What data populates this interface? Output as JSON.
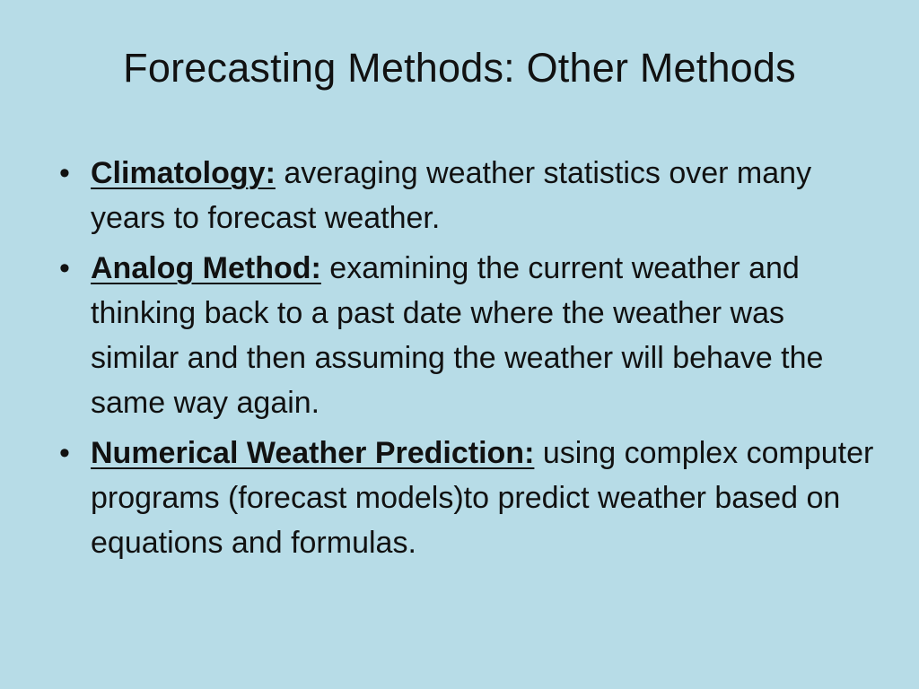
{
  "slide": {
    "title": "Forecasting Methods: Other Methods",
    "bullets": [
      {
        "term": "Climatology:",
        "text": " averaging weather statistics over many years to forecast weather."
      },
      {
        "term": "Analog Method:",
        "text": " examining the current weather and thinking back to a past date where the weather was similar and then assuming the weather will behave the same way again."
      },
      {
        "term": "Numerical Weather Prediction:",
        "text": " using complex computer programs (forecast models)to predict weather based on equations and formulas."
      }
    ],
    "bullet_symbol": "•"
  },
  "colors": {
    "background": "#b7dce7",
    "text": "#111111"
  }
}
